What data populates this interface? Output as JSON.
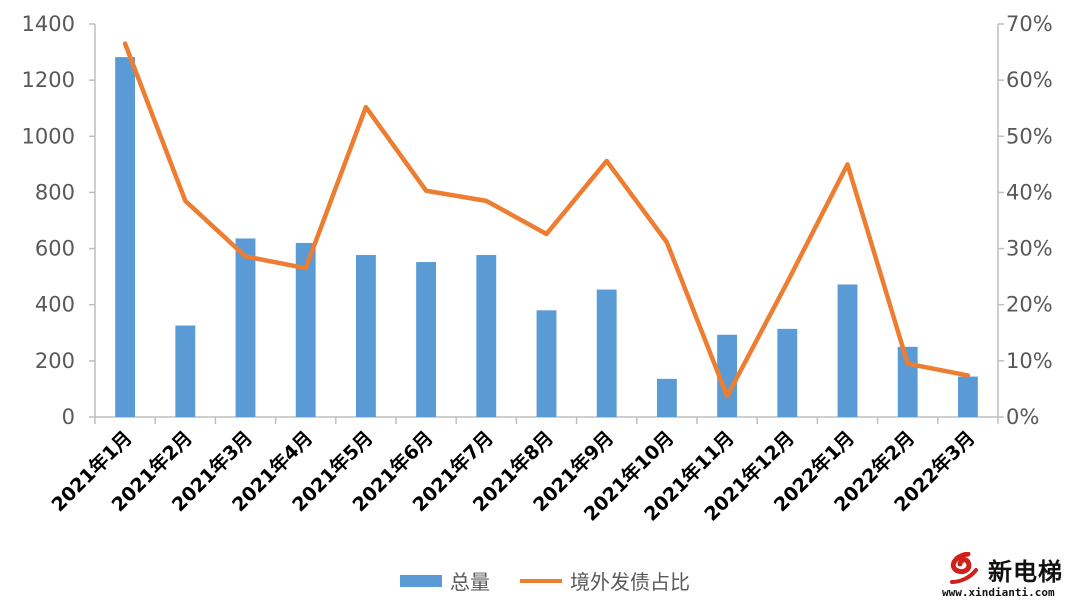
{
  "chart_data": {
    "type": "bar",
    "categories": [
      "2021年1月",
      "2021年2月",
      "2021年3月",
      "2021年4月",
      "2021年5月",
      "2021年6月",
      "2021年7月",
      "2021年8月",
      "2021年9月",
      "2021年10月",
      "2021年11月",
      "2021年12月",
      "2022年1月",
      "2022年2月",
      "2022年3月"
    ],
    "series": [
      {
        "name": "总量",
        "kind": "bar",
        "axis": "left",
        "color": "#5b9bd5",
        "values": [
          1282,
          326,
          636,
          620,
          577,
          552,
          577,
          380,
          454,
          136,
          293,
          314,
          472,
          250,
          144
        ]
      },
      {
        "name": "境外发债占比",
        "kind": "line",
        "axis": "right",
        "color": "#ed7d31",
        "values": [
          0.665,
          0.385,
          0.286,
          0.265,
          0.552,
          0.403,
          0.385,
          0.326,
          0.456,
          0.311,
          0.037,
          0.24,
          0.45,
          0.095,
          0.074
        ]
      }
    ],
    "ylim_left": [
      0,
      1400
    ],
    "yticks_left": [
      "0",
      "200",
      "400",
      "600",
      "800",
      "1000",
      "1200",
      "1400"
    ],
    "ylim_right": [
      0,
      0.7
    ],
    "yticks_right": [
      "0%",
      "10%",
      "20%",
      "30%",
      "40%",
      "50%",
      "60%",
      "70%"
    ],
    "grid": false,
    "legend_position": "bottom"
  },
  "watermark": {
    "text": "新电梯",
    "url": "www.xindianti.com"
  }
}
